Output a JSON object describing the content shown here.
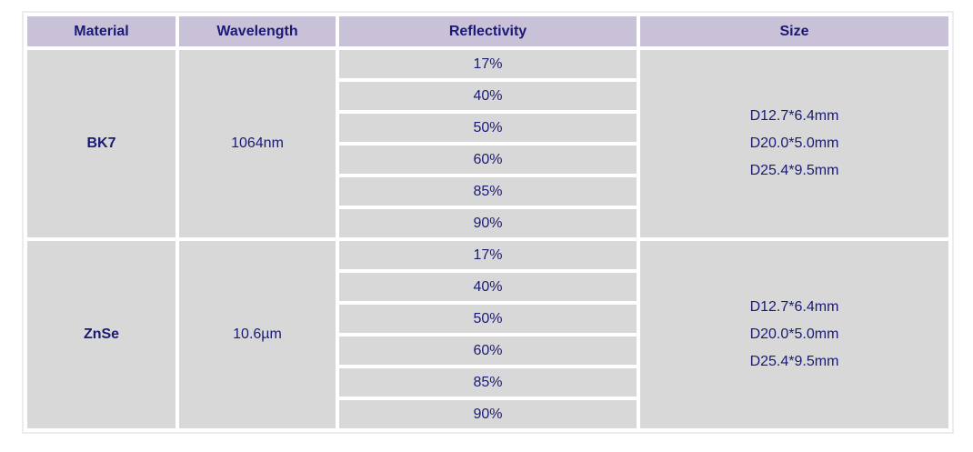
{
  "table": {
    "headers": [
      "Material",
      "Wavelength",
      "Reflectivity",
      "Size"
    ],
    "groups": [
      {
        "material": "BK7",
        "wavelength": "1064nm",
        "reflectivities": [
          "17%",
          "40%",
          "50%",
          "60%",
          "85%",
          "90%"
        ],
        "sizes": [
          "D12.7*6.4mm",
          "D20.0*5.0mm",
          "D25.4*9.5mm"
        ]
      },
      {
        "material": "ZnSe",
        "wavelength": "10.6µm",
        "reflectivities": [
          "17%",
          "40%",
          "50%",
          "60%",
          "85%",
          "90%"
        ],
        "sizes": [
          "D12.7*6.4mm",
          "D20.0*5.0mm",
          "D25.4*9.5mm"
        ]
      }
    ],
    "colors": {
      "header_bg": "#c9c1d8",
      "cell_bg": "#d8d8d8",
      "text": "#1a1a75",
      "border": "#ececec",
      "gap": "#ffffff"
    }
  }
}
